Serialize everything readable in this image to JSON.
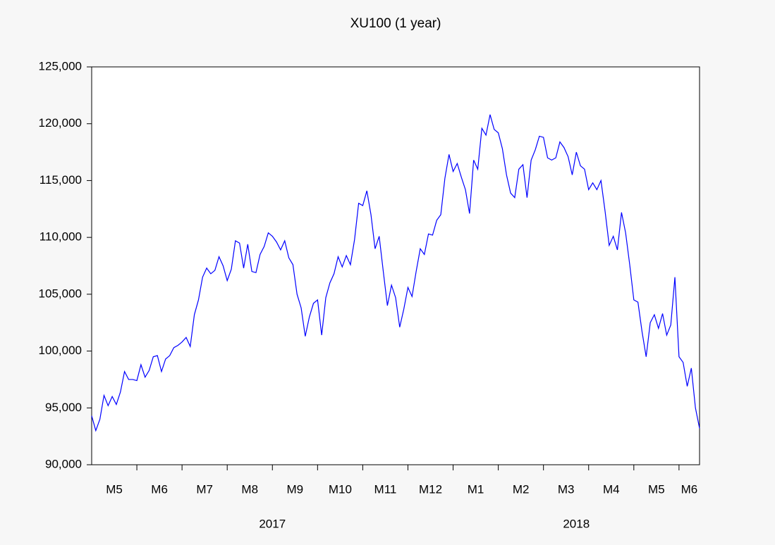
{
  "chart_data": {
    "type": "line",
    "title": "XU100 (1 year)",
    "color": "#0000ff",
    "ylim": [
      90000,
      125000
    ],
    "yticks": [
      {
        "value": 90000,
        "label": "90,000"
      },
      {
        "value": 95000,
        "label": "95,000"
      },
      {
        "value": 100000,
        "label": "100,000"
      },
      {
        "value": 105000,
        "label": "105,000"
      },
      {
        "value": 110000,
        "label": "110,000"
      },
      {
        "value": 115000,
        "label": "115,000"
      },
      {
        "value": 120000,
        "label": "120,000"
      },
      {
        "value": 125000,
        "label": "125,000"
      }
    ],
    "years": [
      {
        "label": "2017",
        "months": [
          {
            "label": "M5",
            "values": [
              94300,
              93000,
              94000,
              96100,
              95200,
              96000,
              95300,
              96400,
              98200,
              97500,
              97500
            ]
          },
          {
            "label": "M6",
            "values": [
              97400,
              98800,
              97700,
              98300,
              99500,
              99600,
              98200,
              99300,
              99600,
              100300,
              100500
            ]
          },
          {
            "label": "M7",
            "values": [
              100800,
              101200,
              100400,
              103200,
              104500,
              106500,
              107300,
              106800,
              107100,
              108300,
              107500
            ]
          },
          {
            "label": "M8",
            "values": [
              106200,
              107200,
              109700,
              109500,
              107300,
              109400,
              107000,
              106900,
              108500,
              109200,
              110400
            ]
          },
          {
            "label": "M9",
            "values": [
              110100,
              109600,
              108900,
              109700,
              108200,
              107600,
              105000,
              103800,
              101300,
              103000,
              104200
            ]
          },
          {
            "label": "M10",
            "values": [
              104500,
              101400,
              104700,
              106000,
              106800,
              108300,
              107400,
              108400,
              107600,
              109800,
              113000
            ]
          },
          {
            "label": "M11",
            "values": [
              112800,
              114100,
              112000,
              109000,
              110100,
              107000,
              104000,
              105800,
              104700,
              102100,
              103700
            ]
          },
          {
            "label": "M12",
            "values": [
              105600,
              104800,
              107000,
              109000,
              108500,
              110300,
              110200,
              111500,
              112000,
              115200,
              117300
            ]
          }
        ]
      },
      {
        "label": "2018",
        "months": [
          {
            "label": "M1",
            "values": [
              115800,
              116500,
              115300,
              114200,
              112100,
              116800,
              116000,
              119600,
              119000,
              120800,
              119500
            ]
          },
          {
            "label": "M2",
            "values": [
              119200,
              117800,
              115500,
              113900,
              113500,
              116000,
              116400,
              113500,
              116800,
              117700,
              118900
            ]
          },
          {
            "label": "M3",
            "values": [
              118800,
              117000,
              116800,
              117000,
              118400,
              117900,
              117100,
              115500,
              117500,
              116300,
              116000
            ]
          },
          {
            "label": "M4",
            "values": [
              114200,
              114800,
              114200,
              115000,
              112300,
              109300,
              110100,
              108900,
              112200,
              110400,
              107600
            ]
          },
          {
            "label": "M5",
            "values": [
              104500,
              104300,
              101700,
              99500,
              102500,
              103200,
              102000,
              103300,
              101400,
              102300,
              106500
            ]
          },
          {
            "label": "M6",
            "values": [
              99500,
              99000,
              96900,
              98500,
              95000,
              93200
            ]
          }
        ]
      }
    ]
  }
}
